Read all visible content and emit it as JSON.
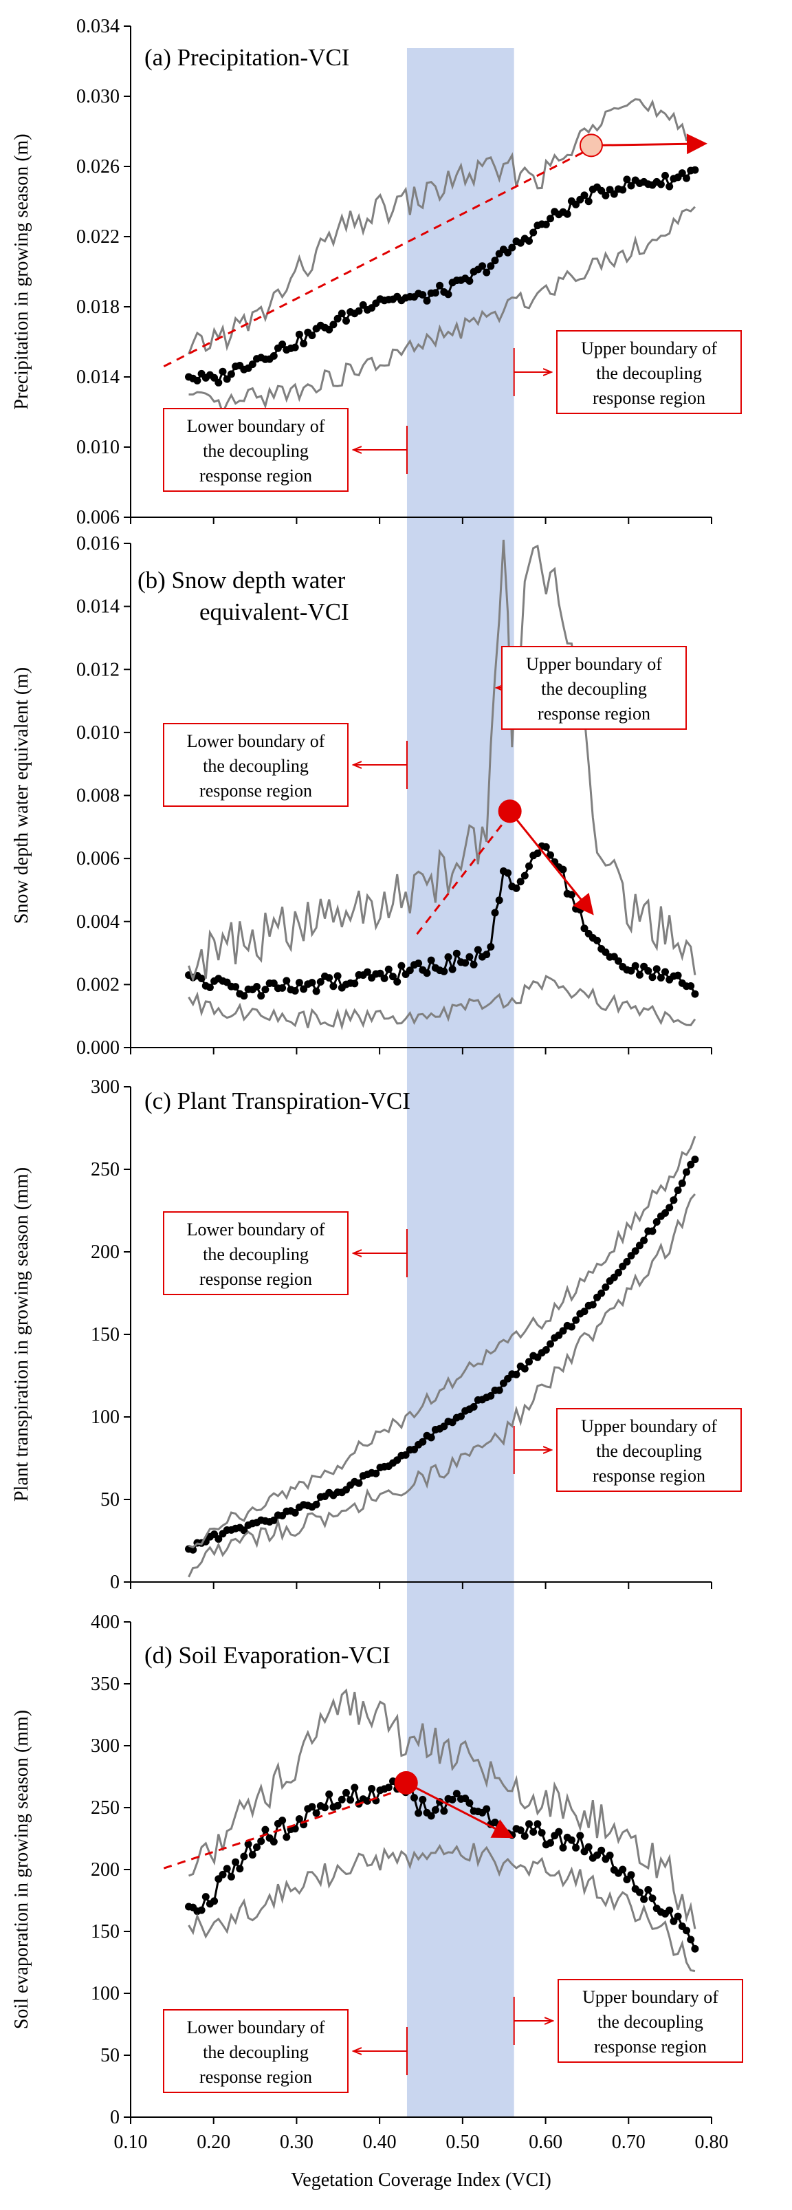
{
  "colors": {
    "band": "#c9d6ef",
    "mean_line": "#000000",
    "bound_line": "#808080",
    "annotation": "#e00000",
    "marker_a": "#f8c6b0"
  },
  "xaxis": {
    "label": "Vegetation Coverage Index (VCI)",
    "range": [
      0.1,
      0.8
    ],
    "ticks": [
      "0.10",
      "0.20",
      "0.30",
      "0.40",
      "0.50",
      "0.60",
      "0.70",
      "0.80"
    ]
  },
  "shaded_band": [
    0.433,
    0.562
  ],
  "chart_data": [
    {
      "id": "a",
      "type": "line",
      "title": "(a) Precipitation-VCI",
      "ylabel": "Precipitation in growing season (m)",
      "ylim": [
        0.006,
        0.034
      ],
      "yticks": [
        "0.006",
        "0.010",
        "0.014",
        "0.018",
        "0.022",
        "0.026",
        "0.030",
        "0.034"
      ],
      "series": [
        {
          "role": "mean",
          "x": [
            0.17,
            0.2,
            0.25,
            0.3,
            0.35,
            0.4,
            0.45,
            0.5,
            0.55,
            0.6,
            0.65,
            0.7,
            0.75,
            0.78
          ],
          "y": [
            0.014,
            0.0138,
            0.015,
            0.016,
            0.0172,
            0.0185,
            0.0185,
            0.0193,
            0.021,
            0.0228,
            0.0243,
            0.025,
            0.0252,
            0.0258
          ]
        },
        {
          "role": "upper",
          "x": [
            0.17,
            0.2,
            0.25,
            0.3,
            0.35,
            0.4,
            0.45,
            0.5,
            0.55,
            0.6,
            0.65,
            0.68,
            0.7,
            0.75,
            0.78
          ],
          "y": [
            0.0153,
            0.0162,
            0.0172,
            0.0198,
            0.0222,
            0.0235,
            0.0242,
            0.0255,
            0.0258,
            0.0255,
            0.0278,
            0.0302,
            0.03,
            0.0283,
            0.0272
          ]
        },
        {
          "role": "lower",
          "x": [
            0.17,
            0.2,
            0.25,
            0.3,
            0.35,
            0.4,
            0.45,
            0.5,
            0.55,
            0.6,
            0.65,
            0.7,
            0.75,
            0.78
          ],
          "y": [
            0.013,
            0.0122,
            0.0128,
            0.0133,
            0.014,
            0.0148,
            0.0158,
            0.0168,
            0.0178,
            0.019,
            0.0203,
            0.0212,
            0.0222,
            0.0237
          ]
        }
      ],
      "trend": {
        "x": [
          0.14,
          0.645
        ],
        "y": [
          0.0146,
          0.0268
        ]
      },
      "marker": {
        "x": 0.655,
        "y": 0.0272
      },
      "arrow": {
        "x1": 0.655,
        "y1": 0.0272,
        "x2": 0.79,
        "y2": 0.0273
      },
      "lower_box": [
        "Lower boundary of",
        "the decoupling",
        "response region"
      ],
      "upper_box": [
        "Upper boundary of",
        "the decoupling",
        "response region"
      ]
    },
    {
      "id": "b",
      "type": "line",
      "title_lines": [
        "(b) Snow depth water",
        "equivalent-VCI"
      ],
      "ylabel": "Snow depth water equivalent  (m)",
      "ylim": [
        0,
        0.016
      ],
      "yticks": [
        "0.000",
        "0.002",
        "0.004",
        "0.006",
        "0.008",
        "0.010",
        "0.012",
        "0.014",
        "0.016"
      ],
      "series": [
        {
          "role": "mean",
          "x": [
            0.17,
            0.2,
            0.25,
            0.3,
            0.35,
            0.4,
            0.45,
            0.5,
            0.53,
            0.55,
            0.57,
            0.6,
            0.62,
            0.64,
            0.66,
            0.7,
            0.75,
            0.78
          ],
          "y": [
            0.0023,
            0.002,
            0.0018,
            0.0019,
            0.0021,
            0.0022,
            0.0025,
            0.0028,
            0.0029,
            0.0055,
            0.0052,
            0.0065,
            0.0055,
            0.0043,
            0.0033,
            0.0025,
            0.0022,
            0.0017
          ]
        },
        {
          "role": "upper",
          "x": [
            0.17,
            0.2,
            0.25,
            0.3,
            0.35,
            0.4,
            0.45,
            0.5,
            0.53,
            0.55,
            0.56,
            0.58,
            0.6,
            0.62,
            0.64,
            0.66,
            0.7,
            0.75,
            0.78
          ],
          "y": [
            0.0026,
            0.003,
            0.0035,
            0.0038,
            0.0042,
            0.0046,
            0.005,
            0.006,
            0.007,
            0.016,
            0.01,
            0.016,
            0.015,
            0.014,
            0.012,
            0.007,
            0.0045,
            0.0035,
            0.0023
          ]
        },
        {
          "role": "lower",
          "x": [
            0.17,
            0.2,
            0.25,
            0.3,
            0.35,
            0.4,
            0.45,
            0.5,
            0.55,
            0.6,
            0.65,
            0.7,
            0.75,
            0.78
          ],
          "y": [
            0.0016,
            0.0012,
            0.001,
            0.0009,
            0.0009,
            0.001,
            0.0011,
            0.0012,
            0.0015,
            0.002,
            0.0016,
            0.0012,
            0.001,
            0.0009
          ]
        }
      ],
      "trend": {
        "x": [
          0.445,
          0.557
        ],
        "y": [
          0.0036,
          0.0074
        ]
      },
      "marker": {
        "x": 0.557,
        "y": 0.0075
      },
      "arrow": {
        "x1": 0.557,
        "y1": 0.0075,
        "x2": 0.655,
        "y2": 0.0043
      },
      "lower_box": [
        "Lower boundary of",
        "the decoupling",
        "response region"
      ],
      "upper_box": [
        "Upper boundary of",
        "the decoupling",
        "response region"
      ]
    },
    {
      "id": "c",
      "type": "line",
      "title": "(c) Plant Transpiration-VCI",
      "ylabel": "Plant transpiration in growing season (mm)",
      "ylim": [
        0,
        300
      ],
      "yticks": [
        "0",
        "50",
        "100",
        "150",
        "200",
        "250",
        "300"
      ],
      "series": [
        {
          "role": "mean",
          "x": [
            0.17,
            0.2,
            0.25,
            0.3,
            0.35,
            0.4,
            0.45,
            0.5,
            0.55,
            0.6,
            0.65,
            0.7,
            0.75,
            0.78
          ],
          "y": [
            20,
            27,
            35,
            43,
            55,
            68,
            85,
            103,
            120,
            142,
            165,
            195,
            228,
            256
          ]
        },
        {
          "role": "upper",
          "x": [
            0.17,
            0.2,
            0.25,
            0.3,
            0.35,
            0.4,
            0.45,
            0.5,
            0.55,
            0.6,
            0.65,
            0.7,
            0.75,
            0.78
          ],
          "y": [
            22,
            33,
            45,
            58,
            72,
            88,
            108,
            125,
            145,
            160,
            185,
            215,
            245,
            270
          ]
        },
        {
          "role": "lower",
          "x": [
            0.17,
            0.2,
            0.25,
            0.3,
            0.35,
            0.4,
            0.45,
            0.5,
            0.55,
            0.6,
            0.65,
            0.7,
            0.75,
            0.78
          ],
          "y": [
            3,
            18,
            28,
            33,
            42,
            52,
            62,
            75,
            90,
            120,
            148,
            175,
            205,
            235
          ]
        }
      ],
      "lower_box": [
        "Lower boundary of",
        "the decoupling",
        "response region"
      ],
      "upper_box": [
        "Upper boundary of",
        "the decoupling",
        "response region"
      ]
    },
    {
      "id": "d",
      "type": "line",
      "title": "(d) Soil Evaporation-VCI",
      "ylabel": "Soil evaporation in growing season (mm)",
      "ylim": [
        0,
        400
      ],
      "yticks": [
        "0",
        "50",
        "100",
        "150",
        "200",
        "250",
        "300",
        "350",
        "400"
      ],
      "series": [
        {
          "role": "mean",
          "x": [
            0.17,
            0.2,
            0.25,
            0.3,
            0.35,
            0.4,
            0.43,
            0.45,
            0.5,
            0.55,
            0.6,
            0.65,
            0.7,
            0.75,
            0.78
          ],
          "y": [
            170,
            180,
            222,
            238,
            258,
            262,
            270,
            250,
            255,
            235,
            228,
            218,
            195,
            165,
            136
          ]
        },
        {
          "role": "upper",
          "x": [
            0.17,
            0.2,
            0.25,
            0.3,
            0.35,
            0.4,
            0.43,
            0.45,
            0.5,
            0.55,
            0.6,
            0.65,
            0.7,
            0.75,
            0.78
          ],
          "y": [
            195,
            215,
            255,
            285,
            330,
            330,
            300,
            305,
            290,
            270,
            258,
            245,
            225,
            195,
            152
          ]
        },
        {
          "role": "lower",
          "x": [
            0.17,
            0.2,
            0.25,
            0.3,
            0.35,
            0.4,
            0.45,
            0.5,
            0.55,
            0.6,
            0.65,
            0.7,
            0.75,
            0.78
          ],
          "y": [
            155,
            150,
            170,
            190,
            198,
            208,
            210,
            215,
            205,
            200,
            190,
            170,
            145,
            118
          ]
        }
      ],
      "trend": {
        "x": [
          0.14,
          0.42
        ],
        "y": [
          201,
          263
        ]
      },
      "marker": {
        "x": 0.432,
        "y": 270
      },
      "arrow": {
        "x1": 0.432,
        "y1": 270,
        "x2": 0.557,
        "y2": 227
      },
      "lower_box": [
        "Lower boundary of",
        "the decoupling",
        "response region"
      ],
      "upper_box": [
        "Upper boundary of",
        "the decoupling",
        "response region"
      ]
    }
  ]
}
